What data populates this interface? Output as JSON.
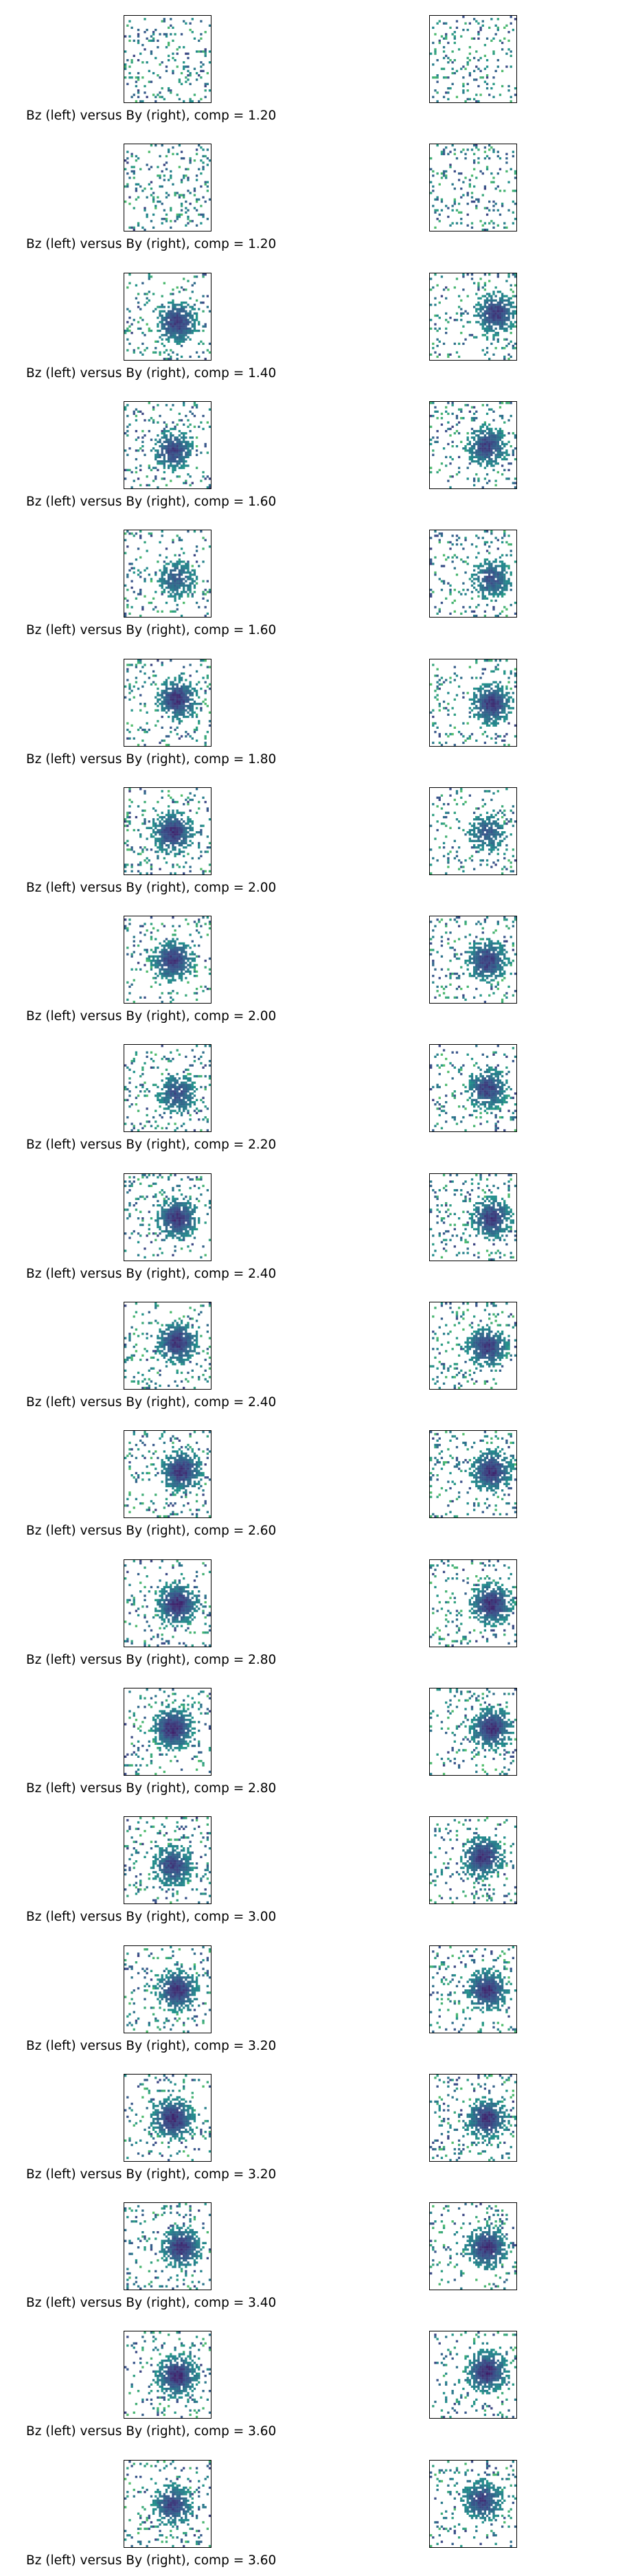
{
  "chart_data": {
    "type": "heatmap",
    "layout": "20 rows x 2 columns of small magnetogram panels, left = Bz, right = By",
    "colormap": "viridis (white for empty / zero)",
    "panels": [
      {
        "caption": "Bz (left) versus By (right), comp = 1.20",
        "comp": 1.2,
        "left_blob": [
          0.45,
          0.6,
          0.1
        ],
        "right_blob": [
          0.35,
          0.45,
          0.1
        ]
      },
      {
        "caption": "Bz (left) versus By (right), comp = 1.20",
        "comp": 1.2,
        "left_blob": [
          0.5,
          0.5,
          0.0
        ],
        "right_blob": [
          0.5,
          0.5,
          0.0
        ]
      },
      {
        "caption": "Bz (left) versus By (right), comp = 1.40",
        "comp": 1.4,
        "left_blob": [
          0.6,
          0.55,
          0.85
        ],
        "right_blob": [
          0.75,
          0.45,
          0.85
        ]
      },
      {
        "caption": "Bz (left) versus By (right), comp = 1.60",
        "comp": 1.6,
        "left_blob": [
          0.55,
          0.55,
          0.8
        ],
        "right_blob": [
          0.65,
          0.5,
          0.8
        ]
      },
      {
        "caption": "Bz (left) versus By (right), comp = 1.60",
        "comp": 1.6,
        "left_blob": [
          0.6,
          0.55,
          0.6
        ],
        "right_blob": [
          0.7,
          0.55,
          0.7
        ]
      },
      {
        "caption": "Bz (left) versus By (right), comp = 1.80",
        "comp": 1.8,
        "left_blob": [
          0.6,
          0.45,
          0.9
        ],
        "right_blob": [
          0.7,
          0.5,
          0.85
        ]
      },
      {
        "caption": "Bz (left) versus By (right), comp = 2.00",
        "comp": 2.0,
        "left_blob": [
          0.55,
          0.5,
          0.9
        ],
        "right_blob": [
          0.65,
          0.5,
          0.6
        ]
      },
      {
        "caption": "Bz (left) versus By (right), comp = 2.00",
        "comp": 2.0,
        "left_blob": [
          0.55,
          0.5,
          0.85
        ],
        "right_blob": [
          0.65,
          0.5,
          0.85
        ]
      },
      {
        "caption": "Bz (left) versus By (right), comp = 2.20",
        "comp": 2.2,
        "left_blob": [
          0.6,
          0.55,
          0.7
        ],
        "right_blob": [
          0.65,
          0.5,
          0.8
        ]
      },
      {
        "caption": "Bz (left) versus By (right), comp = 2.40",
        "comp": 2.4,
        "left_blob": [
          0.6,
          0.5,
          0.9
        ],
        "right_blob": [
          0.7,
          0.5,
          0.85
        ]
      },
      {
        "caption": "Bz (left) versus By (right), comp = 2.40",
        "comp": 2.4,
        "left_blob": [
          0.6,
          0.45,
          0.9
        ],
        "right_blob": [
          0.65,
          0.5,
          0.85
        ]
      },
      {
        "caption": "Bz (left) versus By (right), comp = 2.60",
        "comp": 2.6,
        "left_blob": [
          0.65,
          0.45,
          0.9
        ],
        "right_blob": [
          0.7,
          0.45,
          0.9
        ]
      },
      {
        "caption": "Bz (left) versus By (right), comp = 2.80",
        "comp": 2.8,
        "left_blob": [
          0.6,
          0.5,
          0.95
        ],
        "right_blob": [
          0.7,
          0.5,
          0.95
        ]
      },
      {
        "caption": "Bz (left) versus By (right), comp = 2.80",
        "comp": 2.8,
        "left_blob": [
          0.55,
          0.45,
          0.95
        ],
        "right_blob": [
          0.7,
          0.45,
          0.9
        ]
      },
      {
        "caption": "Bz (left) versus By (right), comp = 3.00",
        "comp": 3.0,
        "left_blob": [
          0.55,
          0.55,
          0.8
        ],
        "right_blob": [
          0.6,
          0.45,
          0.9
        ]
      },
      {
        "caption": "Bz (left) versus By (right), comp = 3.20",
        "comp": 3.2,
        "left_blob": [
          0.6,
          0.5,
          0.9
        ],
        "right_blob": [
          0.65,
          0.5,
          0.9
        ]
      },
      {
        "caption": "Bz (left) versus By (right), comp = 3.20",
        "comp": 3.2,
        "left_blob": [
          0.55,
          0.5,
          0.95
        ],
        "right_blob": [
          0.65,
          0.5,
          0.9
        ]
      },
      {
        "caption": "Bz (left) versus By (right), comp = 3.40",
        "comp": 3.4,
        "left_blob": [
          0.65,
          0.5,
          0.9
        ],
        "right_blob": [
          0.65,
          0.5,
          0.9
        ]
      },
      {
        "caption": "Bz (left) versus By (right), comp = 3.60",
        "comp": 3.6,
        "left_blob": [
          0.6,
          0.5,
          0.95
        ],
        "right_blob": [
          0.65,
          0.45,
          0.95
        ]
      },
      {
        "caption": "Bz (left) versus By (right), comp = 3.60",
        "comp": 3.6,
        "left_blob": [
          0.55,
          0.5,
          0.8
        ],
        "right_blob": [
          0.6,
          0.45,
          0.8
        ]
      }
    ]
  }
}
